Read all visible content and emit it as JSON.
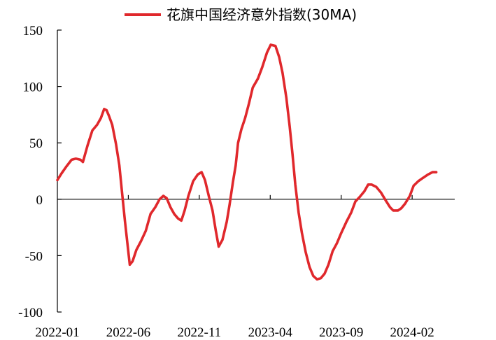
{
  "chart_data": {
    "type": "line",
    "title": "",
    "xlabel": "",
    "ylabel": "",
    "ylim": [
      -100,
      150
    ],
    "yticks": [
      -100,
      -50,
      0,
      50,
      100,
      150
    ],
    "xtick_labels": [
      "2022-01",
      "2022-06",
      "2022-11",
      "2023-04",
      "2023-09",
      "2024-02"
    ],
    "xlim": [
      "2022-01",
      "2024-05"
    ],
    "grid": false,
    "legend": "top-center",
    "series": [
      {
        "name": "花旗中国经济意外指数(30MA)",
        "color": "#e0282c",
        "points": [
          [
            "2022-01-01",
            17
          ],
          [
            "2022-01-10",
            23
          ],
          [
            "2022-01-20",
            29
          ],
          [
            "2022-02-01",
            35
          ],
          [
            "2022-02-10",
            36
          ],
          [
            "2022-02-20",
            35
          ],
          [
            "2022-02-25",
            33
          ],
          [
            "2022-03-05",
            48
          ],
          [
            "2022-03-15",
            61
          ],
          [
            "2022-03-25",
            66
          ],
          [
            "2022-04-03",
            72
          ],
          [
            "2022-04-10",
            80
          ],
          [
            "2022-04-15",
            79
          ],
          [
            "2022-04-20",
            74
          ],
          [
            "2022-04-27",
            66
          ],
          [
            "2022-05-05",
            49
          ],
          [
            "2022-05-12",
            30
          ],
          [
            "2022-05-18",
            5
          ],
          [
            "2022-05-24",
            -20
          ],
          [
            "2022-05-30",
            -43
          ],
          [
            "2022-06-04",
            -58
          ],
          [
            "2022-06-10",
            -55
          ],
          [
            "2022-06-18",
            -45
          ],
          [
            "2022-06-28",
            -37
          ],
          [
            "2022-07-08",
            -28
          ],
          [
            "2022-07-18",
            -13
          ],
          [
            "2022-07-28",
            -7
          ],
          [
            "2022-08-07",
            0
          ],
          [
            "2022-08-15",
            3
          ],
          [
            "2022-08-22",
            1
          ],
          [
            "2022-08-30",
            -7
          ],
          [
            "2022-09-08",
            -13
          ],
          [
            "2022-09-16",
            -17
          ],
          [
            "2022-09-23",
            -19
          ],
          [
            "2022-09-30",
            -10
          ],
          [
            "2022-10-08",
            3
          ],
          [
            "2022-10-18",
            16
          ],
          [
            "2022-10-28",
            22
          ],
          [
            "2022-11-06",
            24
          ],
          [
            "2022-11-13",
            17
          ],
          [
            "2022-11-21",
            3
          ],
          [
            "2022-11-29",
            -10
          ],
          [
            "2022-12-06",
            -28
          ],
          [
            "2022-12-12",
            -42
          ],
          [
            "2022-12-20",
            -36
          ],
          [
            "2022-12-29",
            -20
          ],
          [
            "2023-01-05",
            -5
          ],
          [
            "2023-01-12",
            15
          ],
          [
            "2023-01-18",
            30
          ],
          [
            "2023-01-23",
            50
          ],
          [
            "2023-01-30",
            62
          ],
          [
            "2023-02-08",
            72
          ],
          [
            "2023-02-16",
            85
          ],
          [
            "2023-02-24",
            99
          ],
          [
            "2023-03-05",
            107
          ],
          [
            "2023-03-14",
            117
          ],
          [
            "2023-03-24",
            130
          ],
          [
            "2023-04-02",
            137
          ],
          [
            "2023-04-12",
            136
          ],
          [
            "2023-04-20",
            126
          ],
          [
            "2023-04-27",
            112
          ],
          [
            "2023-05-05",
            90
          ],
          [
            "2023-05-12",
            65
          ],
          [
            "2023-05-18",
            40
          ],
          [
            "2023-05-24",
            13
          ],
          [
            "2023-06-01",
            -12
          ],
          [
            "2023-06-08",
            -30
          ],
          [
            "2023-06-16",
            -47
          ],
          [
            "2023-06-24",
            -60
          ],
          [
            "2023-07-02",
            -68
          ],
          [
            "2023-07-10",
            -71
          ],
          [
            "2023-07-18",
            -70
          ],
          [
            "2023-07-26",
            -66
          ],
          [
            "2023-08-04",
            -58
          ],
          [
            "2023-08-13",
            -46
          ],
          [
            "2023-08-22",
            -39
          ],
          [
            "2023-09-01",
            -30
          ],
          [
            "2023-09-12",
            -20
          ],
          [
            "2023-09-22",
            -12
          ],
          [
            "2023-10-01",
            -2
          ],
          [
            "2023-10-10",
            2
          ],
          [
            "2023-10-20",
            7
          ],
          [
            "2023-10-28",
            13
          ],
          [
            "2023-11-05",
            13
          ],
          [
            "2023-11-15",
            11
          ],
          [
            "2023-11-25",
            6
          ],
          [
            "2023-12-05",
            -1
          ],
          [
            "2023-12-14",
            -7
          ],
          [
            "2023-12-21",
            -10
          ],
          [
            "2023-12-31",
            -10
          ],
          [
            "2024-01-08",
            -8
          ],
          [
            "2024-01-16",
            -4
          ],
          [
            "2024-01-26",
            3
          ],
          [
            "2024-02-04",
            12
          ],
          [
            "2024-02-14",
            16
          ],
          [
            "2024-02-24",
            19
          ],
          [
            "2024-03-05",
            22
          ],
          [
            "2024-03-14",
            24
          ],
          [
            "2024-03-22",
            24
          ]
        ]
      }
    ]
  }
}
